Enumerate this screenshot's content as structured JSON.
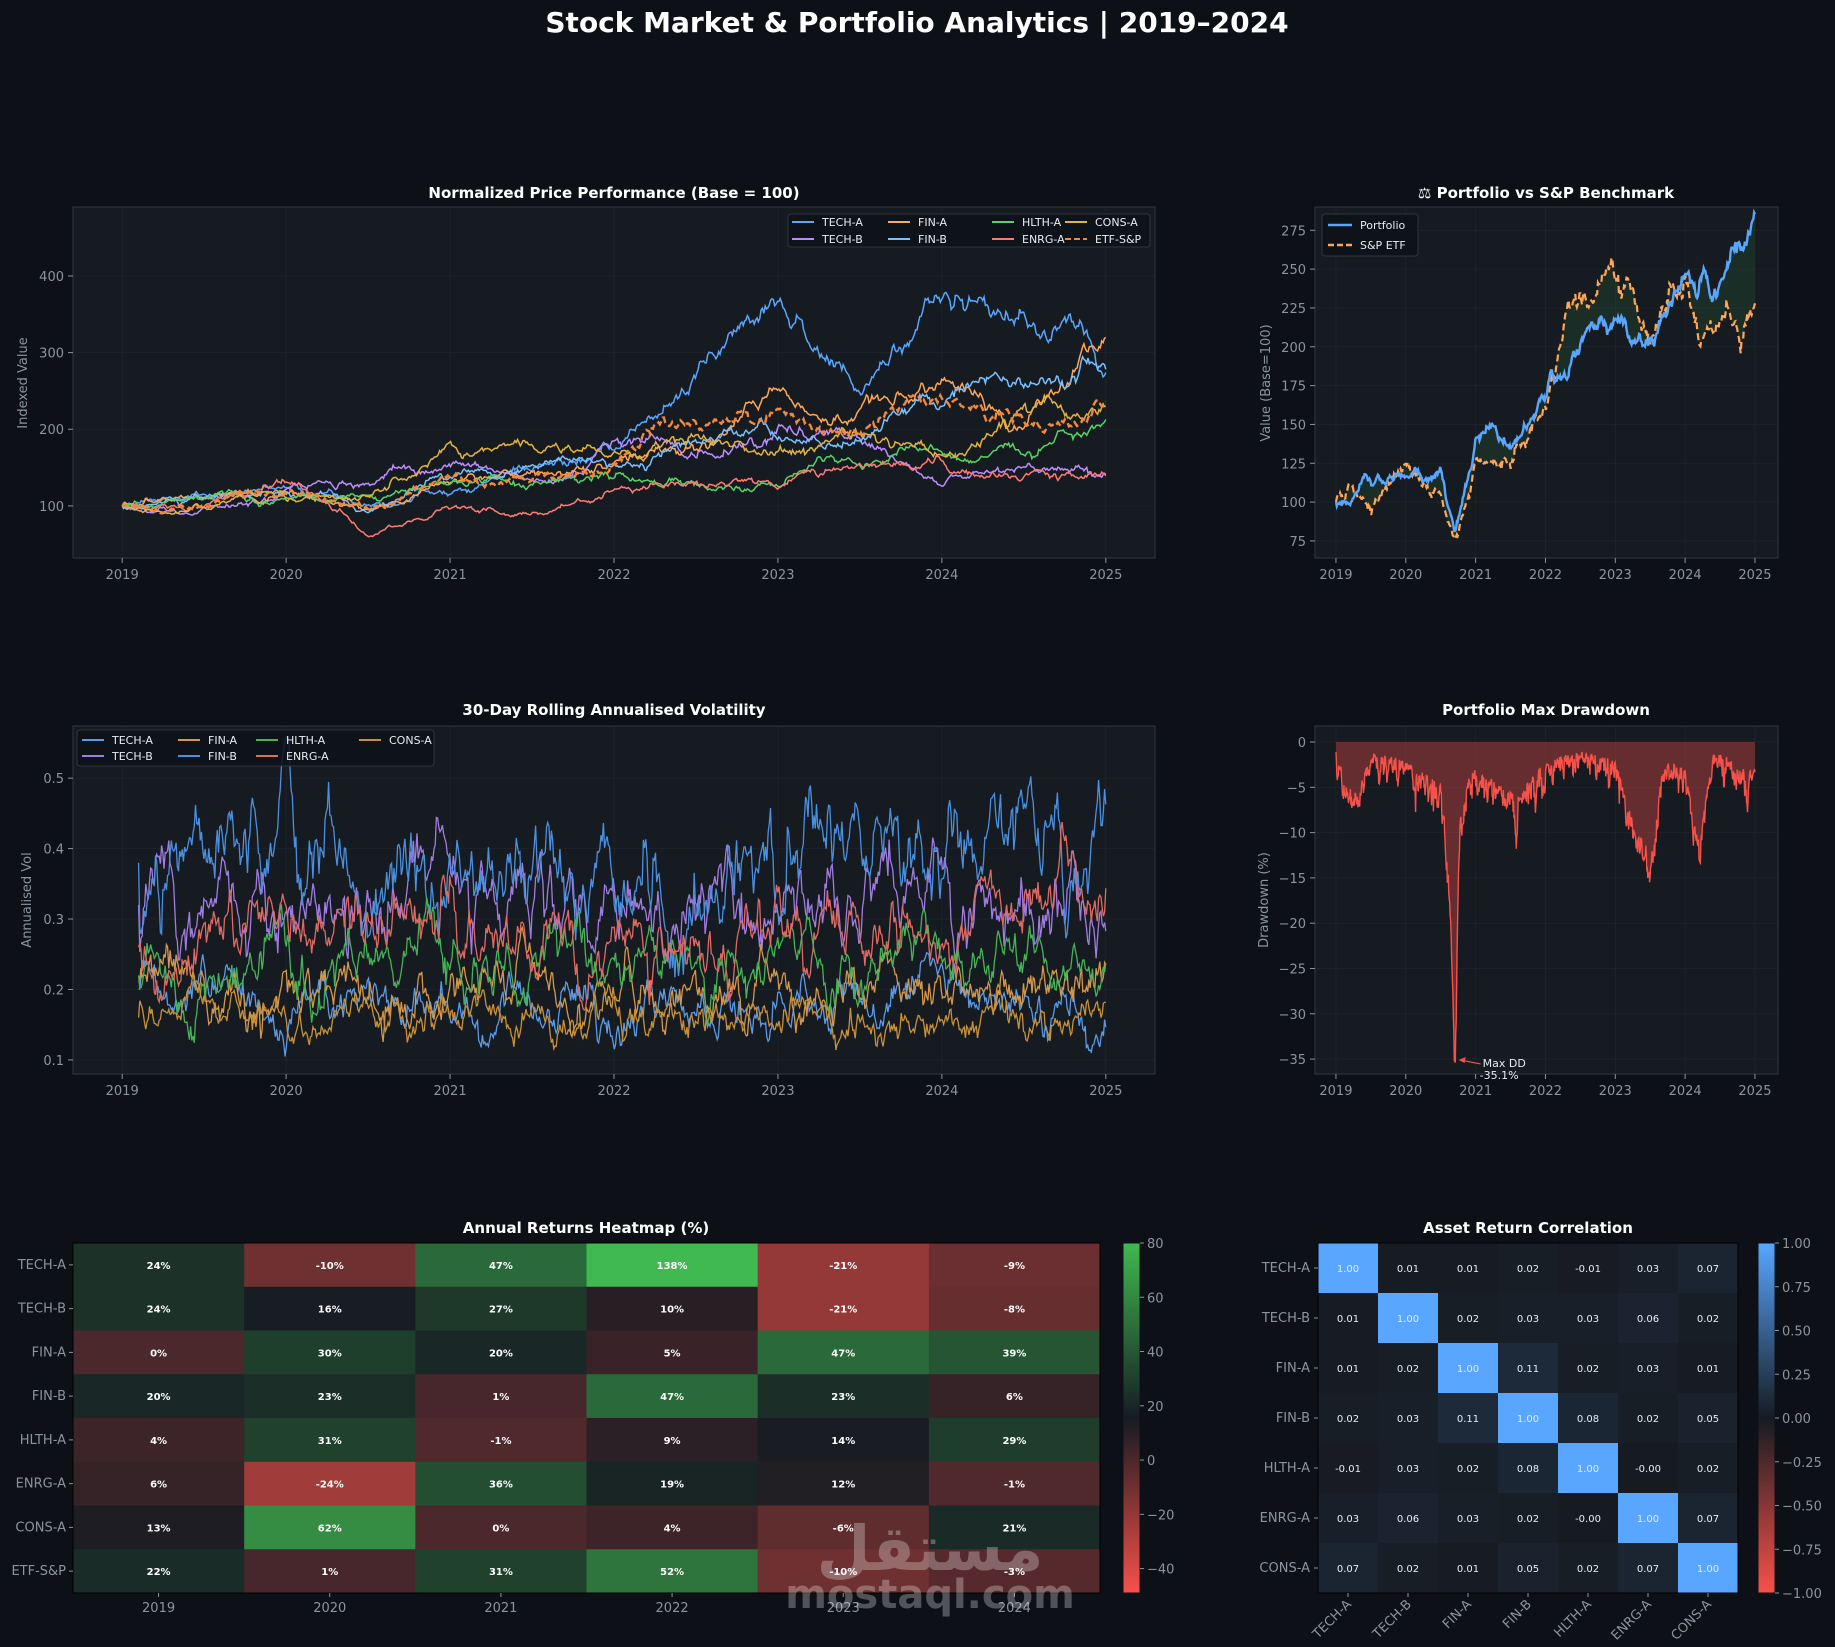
{
  "title": "Stock Market & Portfolio Analytics  |  2019–2024",
  "watermark": {
    "arabic": "مستقل",
    "latin": "mostaql.com"
  },
  "chart_data": [
    {
      "id": "price",
      "type": "line",
      "title": "Normalized Price Performance (Base = 100)",
      "xlabel": "",
      "ylabel": "Indexed Value",
      "xlim": [
        2018.7,
        2025.3
      ],
      "ylim": [
        32,
        490
      ],
      "xticks": [
        2019,
        2020,
        2021,
        2022,
        2023,
        2024,
        2025
      ],
      "yticks": [
        100,
        200,
        300,
        400
      ],
      "grid": true,
      "legend": "top-right",
      "x": [
        2019,
        2019.5,
        2020,
        2020.5,
        2021,
        2021.5,
        2022,
        2022.5,
        2023,
        2023.5,
        2024,
        2024.5,
        2025
      ],
      "series": [
        {
          "name": "TECH-A",
          "color": "#58a6ff",
          "values": [
            100,
            105,
            130,
            110,
            130,
            155,
            160,
            260,
            400,
            240,
            380,
            330,
            300
          ]
        },
        {
          "name": "TECH-B",
          "color": "#bc8cff",
          "values": [
            100,
            95,
            115,
            120,
            150,
            140,
            180,
            170,
            200,
            200,
            130,
            160,
            150
          ]
        },
        {
          "name": "FIN-A",
          "color": "#ffa657",
          "values": [
            100,
            105,
            110,
            100,
            135,
            150,
            165,
            200,
            250,
            210,
            260,
            210,
            320
          ]
        },
        {
          "name": "FIN-B",
          "color": "#79c0ff",
          "values": [
            100,
            110,
            115,
            90,
            140,
            150,
            170,
            180,
            210,
            190,
            250,
            280,
            295
          ]
        },
        {
          "name": "HLTH-A",
          "color": "#56d364",
          "values": [
            100,
            105,
            120,
            115,
            125,
            135,
            130,
            125,
            130,
            150,
            160,
            180,
            235
          ]
        },
        {
          "name": "ENRG-A",
          "color": "#ff7b72",
          "values": [
            100,
            100,
            135,
            60,
            100,
            90,
            120,
            130,
            130,
            155,
            150,
            135,
            150
          ]
        },
        {
          "name": "CONS-A",
          "color": "#e3b341",
          "values": [
            100,
            100,
            115,
            100,
            185,
            190,
            170,
            180,
            175,
            200,
            175,
            220,
            225
          ]
        },
        {
          "name": "ETF-S&P",
          "color": "#f0883e",
          "dashed": true,
          "values": [
            100,
            105,
            120,
            95,
            135,
            140,
            160,
            220,
            230,
            190,
            230,
            215,
            220
          ]
        }
      ]
    },
    {
      "id": "bench",
      "type": "line",
      "title": "⚖ Portfolio vs S&P Benchmark",
      "xlabel": "",
      "ylabel": "Value (Base=100)",
      "xlim": [
        2018.7,
        2025.33
      ],
      "ylim": [
        64,
        290
      ],
      "xticks": [
        2019,
        2020,
        2021,
        2022,
        2023,
        2024,
        2025
      ],
      "yticks": [
        75,
        100,
        125,
        150,
        175,
        200,
        225,
        250,
        275
      ],
      "grid": true,
      "legend": "top-left",
      "x": [
        2019,
        2019.5,
        2020,
        2020.5,
        2020.7,
        2021,
        2021.5,
        2022,
        2022.5,
        2023,
        2023.5,
        2024,
        2024.5,
        2025
      ],
      "series": [
        {
          "name": "Portfolio",
          "color": "#58a6ff",
          "values": [
            100,
            110,
            118,
            115,
            80,
            140,
            140,
            170,
            210,
            220,
            200,
            235,
            240,
            275
          ]
        },
        {
          "name": "S&P ETF",
          "color": "#ffa657",
          "dashed": true,
          "values": [
            100,
            105,
            125,
            110,
            75,
            125,
            130,
            165,
            230,
            255,
            210,
            225,
            200,
            215
          ]
        }
      ]
    },
    {
      "id": "vol",
      "type": "line",
      "title": "30-Day Rolling Annualised Volatility",
      "xlabel": "",
      "ylabel": "Annualised Vol",
      "xlim": [
        2018.7,
        2025.3
      ],
      "ylim": [
        0.08,
        0.574
      ],
      "xticks": [
        2019,
        2020,
        2021,
        2022,
        2023,
        2024,
        2025
      ],
      "yticks": [
        0.1,
        0.2,
        0.3,
        0.4,
        0.5
      ],
      "grid": true,
      "legend": "top-left",
      "x": [
        2019.1,
        2020,
        2021,
        2022,
        2023,
        2024,
        2025
      ],
      "series": [
        {
          "name": "TECH-A",
          "color": "#5a9ae6",
          "values": [
            0.2,
            0.18,
            0.16,
            0.17,
            0.17,
            0.2,
            0.15
          ]
        },
        {
          "name": "TECH-B",
          "color": "#a07ce0",
          "values": [
            0.32,
            0.32,
            0.33,
            0.3,
            0.33,
            0.33,
            0.28
          ]
        },
        {
          "name": "FIN-A",
          "color": "#d4984a",
          "values": [
            0.21,
            0.2,
            0.18,
            0.2,
            0.2,
            0.21,
            0.22
          ]
        },
        {
          "name": "FIN-B",
          "color": "#4a90e0",
          "values": [
            0.38,
            0.4,
            0.38,
            0.36,
            0.36,
            0.4,
            0.42
          ]
        },
        {
          "name": "HLTH-A",
          "color": "#46b356",
          "values": [
            0.22,
            0.24,
            0.24,
            0.23,
            0.23,
            0.24,
            0.25
          ]
        },
        {
          "name": "ENRG-A",
          "color": "#e06a62",
          "values": [
            0.26,
            0.28,
            0.28,
            0.27,
            0.3,
            0.3,
            0.32
          ]
        },
        {
          "name": "CONS-A",
          "color": "#c89038",
          "values": [
            0.16,
            0.16,
            0.15,
            0.15,
            0.15,
            0.15,
            0.16
          ]
        }
      ]
    },
    {
      "id": "dd",
      "type": "area",
      "title": "Portfolio Max Drawdown",
      "xlabel": "",
      "ylabel": "Drawdown (%)",
      "xlim": [
        2018.7,
        2025.33
      ],
      "ylim": [
        -36.65,
        1.77
      ],
      "xticks": [
        2019,
        2020,
        2021,
        2022,
        2023,
        2024,
        2025
      ],
      "yticks": [
        0,
        -5,
        -10,
        -15,
        -20,
        -25,
        -30,
        -35
      ],
      "grid": true,
      "color": "#f85149",
      "x": [
        2019,
        2019.3,
        2019.5,
        2020,
        2020.55,
        2020.65,
        2020.7,
        2020.78,
        2021,
        2021.6,
        2022,
        2022.5,
        2023,
        2023.3,
        2023.5,
        2023.7,
        2024,
        2024.2,
        2024.4,
        2025
      ],
      "values": [
        -1,
        -6,
        -1,
        -2,
        -5,
        -20,
        -35.1,
        -5,
        -3,
        -6,
        -2,
        -1,
        -2,
        -10,
        -11.5,
        -2,
        -3,
        -11,
        -1,
        -3
      ],
      "annotation": {
        "label": "Max DD",
        "value": "-35.1%",
        "x": 2020.7,
        "y": -35.1
      }
    },
    {
      "id": "annual",
      "type": "heatmap",
      "title": "Annual Returns Heatmap (%)",
      "rows": [
        "TECH-A",
        "TECH-B",
        "FIN-A",
        "FIN-B",
        "HLTH-A",
        "ENRG-A",
        "CONS-A",
        "ETF-S&P"
      ],
      "cols": [
        "2019",
        "2020",
        "2021",
        "2022",
        "2023",
        "2024"
      ],
      "values": [
        [
          24,
          -10,
          47,
          138,
          -21,
          -9
        ],
        [
          24,
          16,
          27,
          10,
          -21,
          -8
        ],
        [
          0,
          30,
          20,
          5,
          47,
          39
        ],
        [
          20,
          23,
          1,
          47,
          23,
          6
        ],
        [
          4,
          31,
          -1,
          9,
          14,
          29
        ],
        [
          6,
          -24,
          36,
          19,
          12,
          -1
        ],
        [
          13,
          62,
          0,
          4,
          -6,
          21
        ],
        [
          22,
          1,
          31,
          52,
          -10,
          -3
        ]
      ],
      "labels_suffix": "%",
      "colorbar": {
        "min": -49,
        "max": 80,
        "ticks": [
          -40,
          -20,
          0,
          20,
          40,
          60,
          80
        ],
        "tick_labels": [
          "−40",
          "−20",
          "0",
          "20",
          "40",
          "60",
          "80"
        ],
        "low": "#f85149",
        "mid": "#161b22",
        "high": "#3fb950"
      }
    },
    {
      "id": "corr",
      "type": "heatmap",
      "title": "Asset Return Correlation",
      "rows": [
        "TECH-A",
        "TECH-B",
        "FIN-A",
        "FIN-B",
        "HLTH-A",
        "ENRG-A",
        "CONS-A"
      ],
      "cols": [
        "TECH-A",
        "TECH-B",
        "FIN-A",
        "FIN-B",
        "HLTH-A",
        "ENRG-A",
        "CONS-A"
      ],
      "values": [
        [
          "1.00",
          "0.01",
          "0.01",
          "0.02",
          "-0.01",
          "0.03",
          "0.07"
        ],
        [
          "0.01",
          "1.00",
          "0.02",
          "0.03",
          "0.03",
          "0.06",
          "0.02"
        ],
        [
          "0.01",
          "0.02",
          "1.00",
          "0.11",
          "0.02",
          "0.03",
          "0.01"
        ],
        [
          "0.02",
          "0.03",
          "0.11",
          "1.00",
          "0.08",
          "0.02",
          "0.05"
        ],
        [
          "-0.01",
          "0.03",
          "0.02",
          "0.08",
          "1.00",
          "-0.00",
          "0.02"
        ],
        [
          "0.03",
          "0.06",
          "0.03",
          "0.02",
          "-0.00",
          "1.00",
          "0.07"
        ],
        [
          "0.07",
          "0.02",
          "0.01",
          "0.05",
          "0.02",
          "0.07",
          "1.00"
        ]
      ],
      "colorbar": {
        "min": -1,
        "max": 1,
        "ticks": [
          1,
          0.75,
          0.5,
          0.25,
          0,
          -0.25,
          -0.5,
          -0.75,
          -1
        ],
        "tick_labels": [
          "1.00",
          "0.75",
          "0.50",
          "0.25",
          "0.00",
          "−0.25",
          "−0.50",
          "−0.75",
          "−1.00"
        ],
        "low": "#f85149",
        "mid": "#161b22",
        "high": "#58a6ff"
      }
    }
  ]
}
